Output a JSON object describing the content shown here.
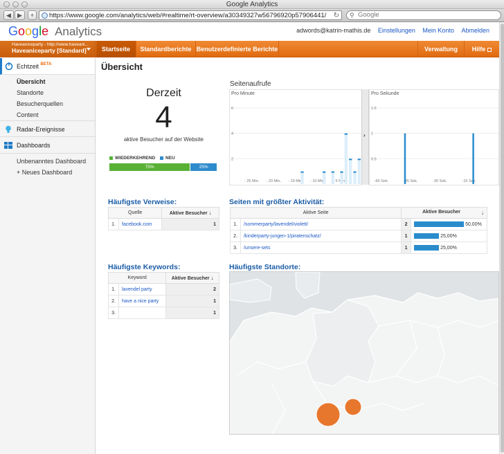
{
  "browser": {
    "window_title": "Google Analytics",
    "url": "https://www.google.com/analytics/web/#realtime/rt-overview/a30349327w56796920p57906441/",
    "search_placeholder": "Google",
    "back_label": "◀",
    "forward_label": "▶",
    "add_label": "+"
  },
  "header": {
    "logo_letters": [
      "G",
      "o",
      "o",
      "g",
      "l",
      "e"
    ],
    "product": "Analytics",
    "user_email": "adwords@katrin-mathis.de",
    "links": [
      "Einstellungen",
      "Mein Konto",
      "Abmelden"
    ]
  },
  "account": {
    "line1": "Haveaniceparty - http://www.haveani...",
    "line2": "Haveaniceparty [Standard]"
  },
  "nav": {
    "tabs": [
      "Startseite",
      "Standardberichte",
      "Benutzerdefinierte Berichte"
    ],
    "right": [
      "Verwaltung",
      "Hilfe"
    ]
  },
  "sidebar": {
    "echtzeit": "Echtzeit",
    "beta": "BETA",
    "items": [
      "Übersicht",
      "Standorte",
      "Besucherquellen",
      "Content"
    ],
    "radar": "Radar-Ereignisse",
    "dashboards": "Dashboards",
    "dashboard_items": [
      "Unbenanntes Dashboard",
      "+ Neues Dashboard"
    ]
  },
  "main": {
    "title": "Übersicht",
    "derzeit": "Derzeit",
    "visitors": "4",
    "visitors_label": "aktive Besucher auf der Website",
    "legend_returning": "WIEDERKEHREND",
    "legend_new": "NEU",
    "returning_pct": "75%",
    "new_pct": "25%",
    "returning_share": 0.75,
    "colors": {
      "returning": "#58b135",
      "new": "#2e8bcc",
      "accent": "#e87722"
    }
  },
  "chart_data": [
    {
      "type": "bar",
      "title": "Seitenaufrufe",
      "subtitle": "Pro Minute",
      "yticks": [
        "6",
        "4",
        "2"
      ],
      "ylim": [
        0,
        6
      ],
      "xticks": [
        "- 25 Min.",
        "- 20 Min.",
        "- 15 Min.",
        "- 10 Min.",
        "- 5 Min."
      ],
      "minutes_ago": [
        14,
        13,
        12,
        11,
        10,
        9,
        8,
        7,
        6,
        5,
        4,
        3,
        2,
        1,
        0
      ],
      "values": [
        0,
        1,
        0,
        0,
        0,
        0,
        1,
        0,
        1,
        0,
        1,
        4,
        2,
        1,
        2
      ]
    },
    {
      "type": "bar",
      "subtitle": "Pro Sekunde",
      "yticks": [
        "1.5",
        "1",
        "0.5"
      ],
      "ylim": [
        0,
        1.5
      ],
      "xticks": [
        "-60 Sek.",
        "-45 Sek.",
        "-30 Sek.",
        "-15 Sek."
      ],
      "seconds_ago": [
        48,
        13
      ],
      "values": [
        1,
        1
      ]
    }
  ],
  "referrals": {
    "title": "Häufigste Verweise:",
    "headers": [
      "Quelle",
      "Aktive Besucher"
    ],
    "rows": [
      {
        "n": "1.",
        "source": "facebook.com",
        "value": "1"
      }
    ]
  },
  "pages": {
    "title": "Seiten mit größter Aktivität:",
    "headers": [
      "Aktive Seite",
      "Aktive Besucher"
    ],
    "rows": [
      {
        "n": "1.",
        "page": "/sommerparty/lavendel/violett/",
        "value": "2",
        "pct": "50,00%",
        "share": 0.5
      },
      {
        "n": "2.",
        "page": "/kinderparty-jungen-1/piratenschatz/",
        "value": "1",
        "pct": "25,00%",
        "share": 0.25
      },
      {
        "n": "3.",
        "page": "/unsere-sets",
        "value": "1",
        "pct": "25,00%",
        "share": 0.25
      }
    ]
  },
  "keywords": {
    "title": "Häufigste Keywords:",
    "headers": [
      "Keyword",
      "Aktive Besucher"
    ],
    "rows": [
      {
        "n": "1.",
        "kw": "lavendel party",
        "value": "2"
      },
      {
        "n": "2.",
        "kw": "have a nice party",
        "value": "1"
      },
      {
        "n": "3.",
        "kw": "",
        "value": "1"
      }
    ]
  },
  "locations": {
    "title": "Häufigste Standorte:"
  }
}
